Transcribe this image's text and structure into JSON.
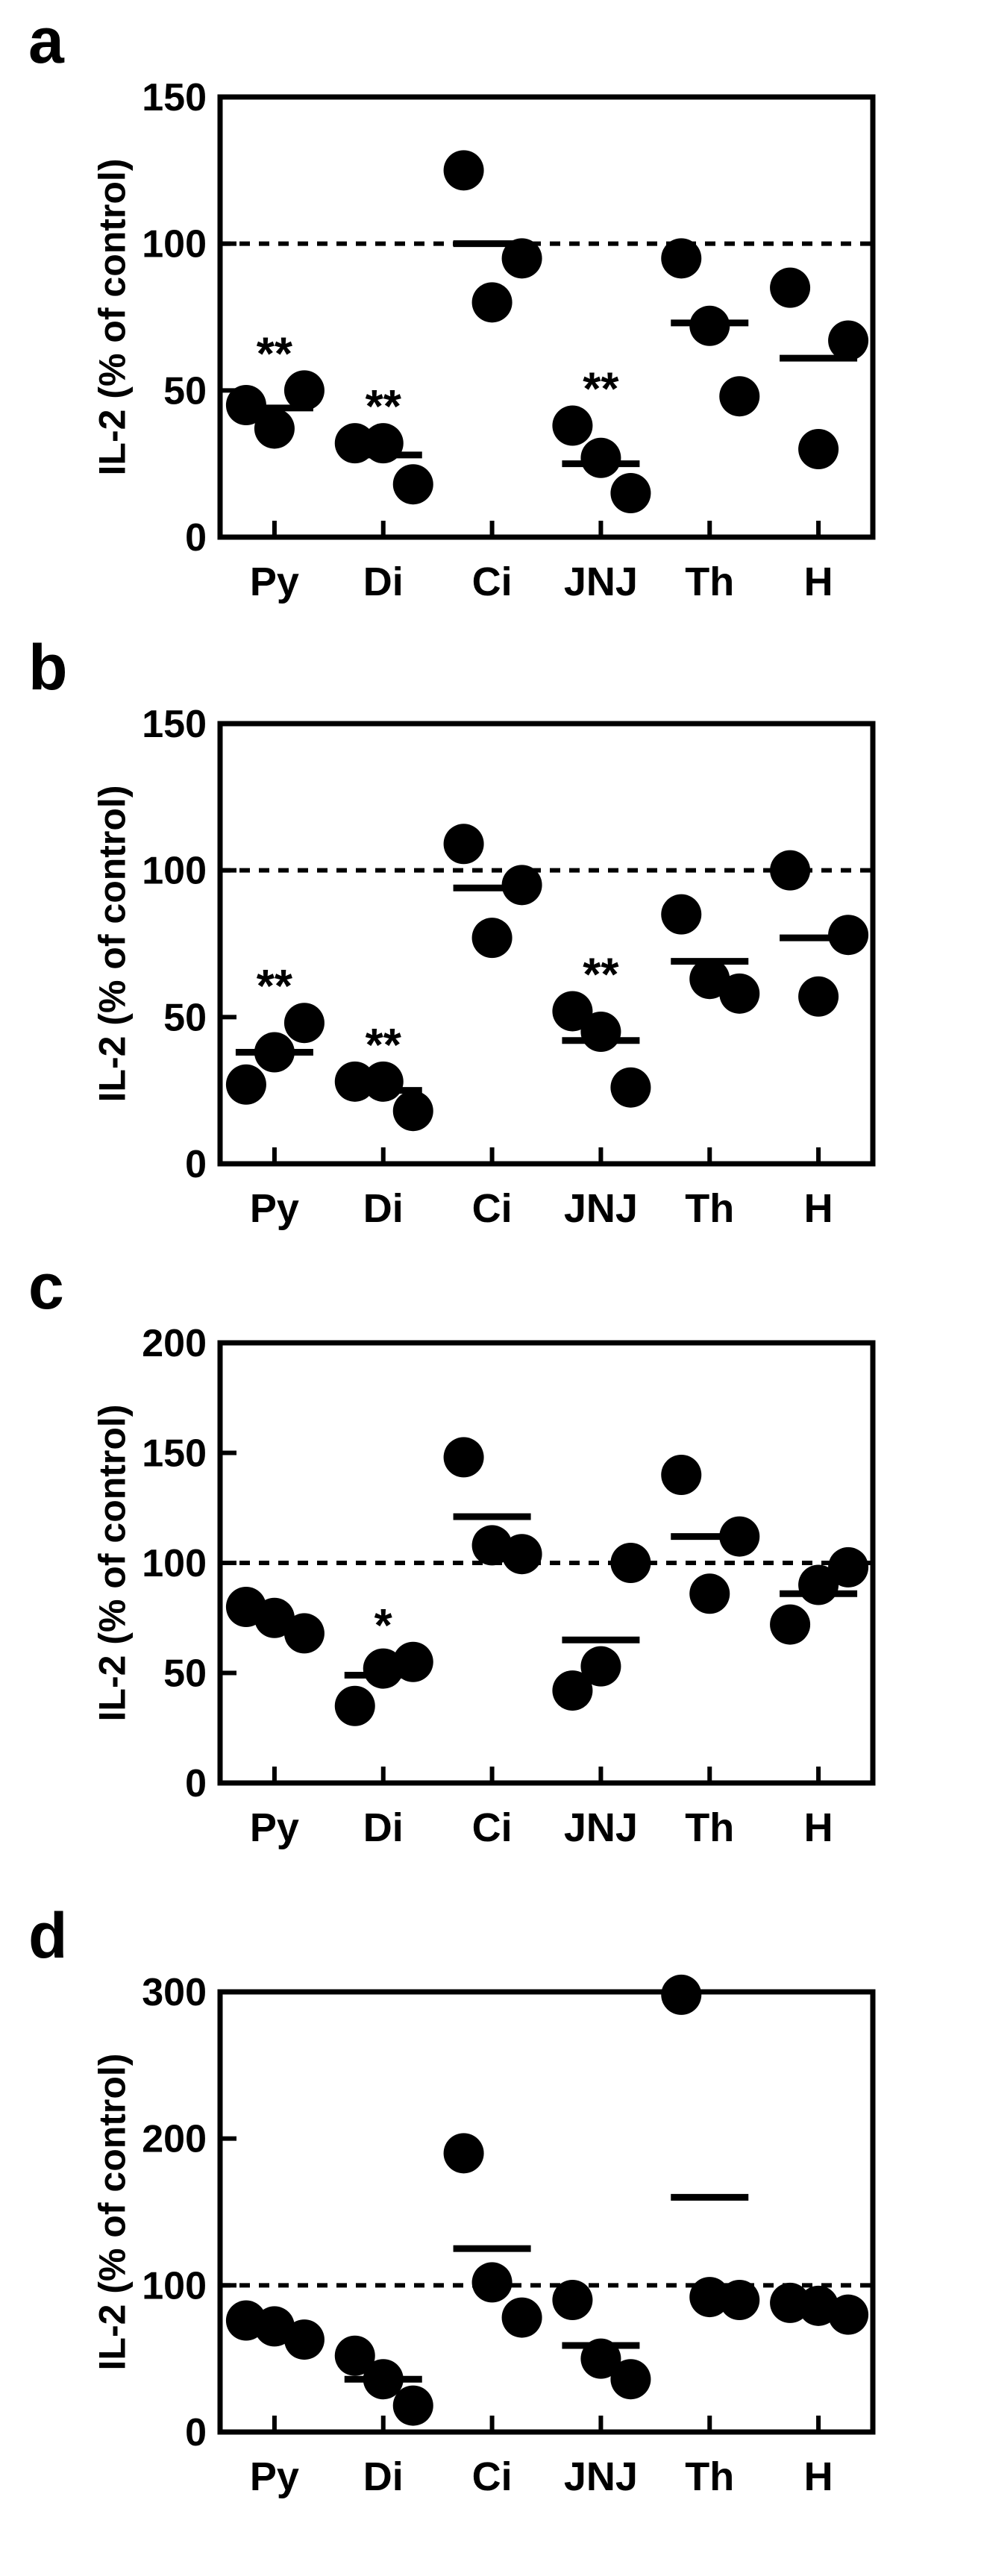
{
  "chart_data": [
    {
      "panel_label": "a",
      "type": "scatter",
      "categories": [
        "Py",
        "Di",
        "Ci",
        "JNJ",
        "Th",
        "H"
      ],
      "ylabel": "IL-2 (% of control)",
      "ylim": [
        0,
        150
      ],
      "yticks": [
        0,
        50,
        100,
        150
      ],
      "reference_line": 100,
      "points": [
        [
          45,
          50,
          37
        ],
        [
          32,
          18,
          32
        ],
        [
          125,
          95,
          80
        ],
        [
          38,
          15,
          27
        ],
        [
          95,
          48,
          72
        ],
        [
          85,
          67,
          30
        ]
      ],
      "means": [
        44,
        28,
        100,
        25,
        73,
        61
      ],
      "significance": [
        "**",
        "**",
        "",
        "**",
        "",
        ""
      ]
    },
    {
      "panel_label": "b",
      "type": "scatter",
      "categories": [
        "Py",
        "Di",
        "Ci",
        "JNJ",
        "Th",
        "H"
      ],
      "ylabel": "IL-2 (% of control)",
      "ylim": [
        0,
        150
      ],
      "yticks": [
        0,
        50,
        100,
        150
      ],
      "reference_line": 100,
      "points": [
        [
          27,
          48,
          38
        ],
        [
          28,
          18,
          28
        ],
        [
          109,
          95,
          77
        ],
        [
          52,
          26,
          45
        ],
        [
          85,
          58,
          63
        ],
        [
          100,
          78,
          57
        ]
      ],
      "means": [
        38,
        25,
        94,
        42,
        69,
        77
      ],
      "significance": [
        "**",
        "**",
        "",
        "**",
        "",
        ""
      ]
    },
    {
      "panel_label": "c",
      "type": "scatter",
      "categories": [
        "Py",
        "Di",
        "Ci",
        "JNJ",
        "Th",
        "H"
      ],
      "ylabel": "IL-2 (% of control)",
      "ylim": [
        0,
        200
      ],
      "yticks": [
        0,
        50,
        100,
        150,
        200
      ],
      "reference_line": 100,
      "points": [
        [
          80,
          68,
          75
        ],
        [
          35,
          55,
          52
        ],
        [
          148,
          104,
          108
        ],
        [
          42,
          100,
          53
        ],
        [
          140,
          112,
          86
        ],
        [
          72,
          98,
          90
        ]
      ],
      "means": [
        74,
        49,
        121,
        65,
        112,
        86
      ],
      "significance": [
        "",
        "*",
        "",
        "",
        "",
        ""
      ]
    },
    {
      "panel_label": "d",
      "type": "scatter",
      "categories": [
        "Py",
        "Di",
        "Ci",
        "JNJ",
        "Th",
        "H"
      ],
      "ylabel": "IL-2 (% of control)",
      "ylim": [
        0,
        300
      ],
      "yticks": [
        0,
        100,
        200,
        300
      ],
      "reference_line": 100,
      "points": [
        [
          76,
          63,
          72
        ],
        [
          52,
          18,
          36
        ],
        [
          190,
          78,
          102
        ],
        [
          90,
          36,
          50
        ],
        [
          298,
          90,
          92
        ],
        [
          88,
          80,
          86
        ]
      ],
      "means": [
        72,
        36,
        125,
        59,
        160,
        85
      ],
      "significance": [
        "",
        "",
        "",
        "",
        "",
        ""
      ]
    }
  ]
}
